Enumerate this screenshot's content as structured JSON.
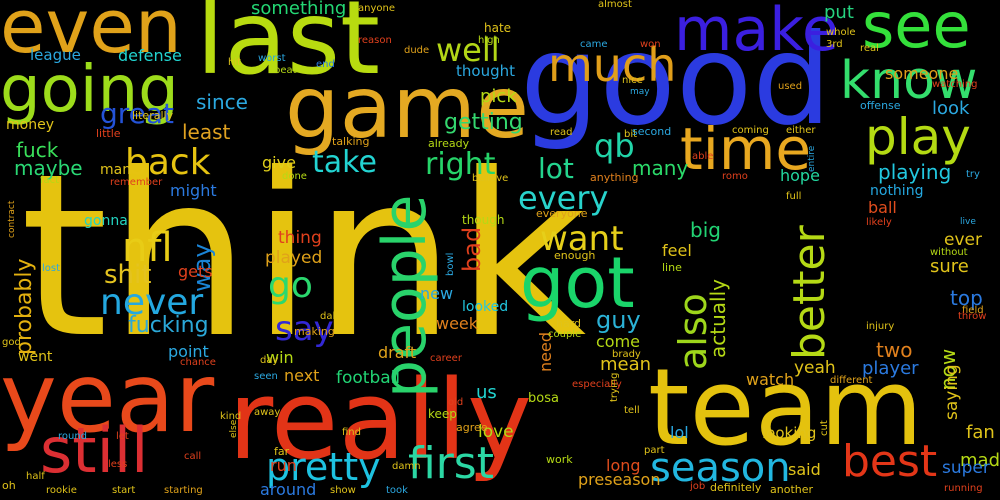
{
  "words": [
    {
      "text": "think",
      "color": "#E5C30F"
    },
    {
      "text": "good",
      "color": "#2B3BE0"
    },
    {
      "text": "last",
      "color": "#B8DB10"
    },
    {
      "text": "even",
      "color": "#E0A21A"
    },
    {
      "text": "game",
      "color": "#E4A922"
    },
    {
      "text": "year",
      "color": "#E8491B"
    },
    {
      "text": "really",
      "color": "#E23417"
    },
    {
      "text": "team",
      "color": "#E4C20E"
    },
    {
      "text": "going",
      "color": "#9DDC1B"
    },
    {
      "text": "people",
      "color": "#29D36B"
    },
    {
      "text": "got",
      "color": "#1AD56A"
    },
    {
      "text": "see",
      "color": "#34E03B"
    },
    {
      "text": "know",
      "color": "#34DE6D"
    },
    {
      "text": "play",
      "color": "#B4DA13"
    },
    {
      "text": "much",
      "color": "#E09E1A"
    },
    {
      "text": "make",
      "color": "#3B1FE0"
    },
    {
      "text": "time",
      "color": "#E8A820"
    },
    {
      "text": "still",
      "color": "#DC2F33"
    },
    {
      "text": "first",
      "color": "#2BD7A4"
    },
    {
      "text": "pretty",
      "color": "#1EC2E0"
    },
    {
      "text": "season",
      "color": "#22B7E0"
    },
    {
      "text": "best",
      "color": "#E33618"
    },
    {
      "text": "better",
      "color": "#B5D915"
    },
    {
      "text": "also",
      "color": "#9ED61B"
    },
    {
      "text": "back",
      "color": "#E6C311"
    },
    {
      "text": "nfl",
      "color": "#E8CC16"
    },
    {
      "text": "never",
      "color": "#24A8E0"
    },
    {
      "text": "say",
      "color": "#3328D6"
    },
    {
      "text": "go",
      "color": "#2BD86E"
    },
    {
      "text": "want",
      "color": "#E6CF1A"
    },
    {
      "text": "every",
      "color": "#29D3CC"
    },
    {
      "text": "well",
      "color": "#B3D717"
    },
    {
      "text": "qb",
      "color": "#21D4A8"
    },
    {
      "text": "right",
      "color": "#26D469"
    },
    {
      "text": "lot",
      "color": "#24D48E"
    },
    {
      "text": "take",
      "color": "#23D4D2"
    },
    {
      "text": "great",
      "color": "#2453D8"
    },
    {
      "text": "shit",
      "color": "#E4C31F"
    },
    {
      "text": "way",
      "color": "#1A84D6"
    },
    {
      "text": "probably",
      "color": "#E3B10F"
    },
    {
      "text": "fucking",
      "color": "#2BA8D8"
    },
    {
      "text": "guy",
      "color": "#2BB2D6"
    },
    {
      "text": "bad",
      "color": "#E0401D"
    },
    {
      "text": "getting",
      "color": "#34D86F"
    },
    {
      "text": "since",
      "color": "#2BA8E0"
    },
    {
      "text": "least",
      "color": "#E0A221"
    },
    {
      "text": "fuck",
      "color": "#3AE05A"
    },
    {
      "text": "maybe",
      "color": "#2AD874"
    },
    {
      "text": "playing",
      "color": "#22C8E0"
    },
    {
      "text": "nothing",
      "color": "#24A8E0"
    },
    {
      "text": "hope",
      "color": "#24D7A0"
    },
    {
      "text": "many",
      "color": "#2BDA6A"
    },
    {
      "text": "someone",
      "color": "#E09E1A"
    },
    {
      "text": "something",
      "color": "#24D874"
    },
    {
      "text": "put",
      "color": "#26D480"
    },
    {
      "text": "look",
      "color": "#2BA8E0"
    },
    {
      "text": "pick",
      "color": "#B5D915"
    },
    {
      "text": "thought",
      "color": "#2BA8E0"
    },
    {
      "text": "league",
      "color": "#2BA8E0"
    },
    {
      "text": "defense",
      "color": "#22D4D0"
    },
    {
      "text": "money",
      "color": "#E0C31A"
    },
    {
      "text": "give",
      "color": "#E0CF1A"
    },
    {
      "text": "might",
      "color": "#2B7AE0"
    },
    {
      "text": "gonna",
      "color": "#22D4C0"
    },
    {
      "text": "thing",
      "color": "#E0401D"
    },
    {
      "text": "played",
      "color": "#E0A21A"
    },
    {
      "text": "gets",
      "color": "#E0401D"
    },
    {
      "text": "feel",
      "color": "#E0C31A"
    },
    {
      "text": "big",
      "color": "#22D474"
    },
    {
      "text": "ball",
      "color": "#E04D1D"
    },
    {
      "text": "ever",
      "color": "#E0C31A"
    },
    {
      "text": "sure",
      "color": "#E0C31A"
    },
    {
      "text": "top",
      "color": "#2B7AE0"
    },
    {
      "text": "new",
      "color": "#2BA8E0"
    },
    {
      "text": "week",
      "color": "#E0801D"
    },
    {
      "text": "looked",
      "color": "#22C8E0"
    },
    {
      "text": "actually",
      "color": "#B5D915"
    },
    {
      "text": "two",
      "color": "#E0801D"
    },
    {
      "text": "player",
      "color": "#2B7AE0"
    },
    {
      "text": "yeah",
      "color": "#E0C31A"
    },
    {
      "text": "now",
      "color": "#B5D915"
    },
    {
      "text": "saying",
      "color": "#E0C31A"
    },
    {
      "text": "fan",
      "color": "#E0C31A"
    },
    {
      "text": "made",
      "color": "#B5D915"
    },
    {
      "text": "super",
      "color": "#2B7AE0"
    },
    {
      "text": "point",
      "color": "#2BA8E0"
    },
    {
      "text": "win",
      "color": "#B5D915"
    },
    {
      "text": "next",
      "color": "#E0A21A"
    },
    {
      "text": "football",
      "color": "#22D474"
    },
    {
      "text": "draft",
      "color": "#E0A21A"
    },
    {
      "text": "us",
      "color": "#22D4D0"
    },
    {
      "text": "need",
      "color": "#E0801D"
    },
    {
      "text": "mean",
      "color": "#E0C31A"
    },
    {
      "text": "come",
      "color": "#B5D915"
    },
    {
      "text": "watch",
      "color": "#E0A21A"
    },
    {
      "text": "love",
      "color": "#B5D915"
    },
    {
      "text": "lol",
      "color": "#2BA8E0"
    },
    {
      "text": "looking",
      "color": "#E0C31A"
    },
    {
      "text": "said",
      "color": "#E0C31A"
    },
    {
      "text": "long",
      "color": "#E04D1D"
    },
    {
      "text": "preseason",
      "color": "#E0A21A"
    },
    {
      "text": "run",
      "color": "#E0401D"
    },
    {
      "text": "around",
      "color": "#2B7AE0"
    },
    {
      "text": "went",
      "color": "#E0C31A"
    },
    {
      "text": "man",
      "color": "#E0C31A"
    },
    {
      "text": "hit",
      "color": "#E0C31A"
    },
    {
      "text": "end",
      "color": "#2B7AE0"
    },
    {
      "text": "hate",
      "color": "#E0C31A"
    },
    {
      "text": "high",
      "color": "#B5D915"
    },
    {
      "text": "almost",
      "color": "#E0C31A"
    },
    {
      "text": "anyone",
      "color": "#E0C31A"
    },
    {
      "text": "came",
      "color": "#2BA8E0"
    },
    {
      "text": "won",
      "color": "#E0401D"
    },
    {
      "text": "nice",
      "color": "#E0C31A"
    },
    {
      "text": "may",
      "color": "#2BA8E0"
    },
    {
      "text": "used",
      "color": "#E0A21A"
    },
    {
      "text": "whole",
      "color": "#E0C31A"
    },
    {
      "text": "3rd",
      "color": "#E0C31A"
    },
    {
      "text": "real",
      "color": "#E0C31A"
    },
    {
      "text": "watching",
      "color": "#E0401D"
    },
    {
      "text": "offense",
      "color": "#2BA8E0"
    },
    {
      "text": "worst",
      "color": "#2BA8E0"
    },
    {
      "text": "beat",
      "color": "#B5D915"
    },
    {
      "text": "reason",
      "color": "#E0401D"
    },
    {
      "text": "dude",
      "color": "#E0A21A"
    },
    {
      "text": "literally",
      "color": "#E0C31A"
    },
    {
      "text": "little",
      "color": "#E0401D"
    },
    {
      "text": "talking",
      "color": "#E0A21A"
    },
    {
      "text": "already",
      "color": "#B5D915"
    },
    {
      "text": "read",
      "color": "#E0C31A"
    },
    {
      "text": "bit",
      "color": "#E0C31A"
    },
    {
      "text": "second",
      "color": "#2BA8E0"
    },
    {
      "text": "coming",
      "color": "#E0C31A"
    },
    {
      "text": "either",
      "color": "#E0C31A"
    },
    {
      "text": "remember",
      "color": "#E0401D"
    },
    {
      "text": "fact",
      "color": "#B5D915"
    },
    {
      "text": "contract",
      "color": "#E0A21A"
    },
    {
      "text": "done",
      "color": "#B5D915"
    },
    {
      "text": "believe",
      "color": "#E0C31A"
    },
    {
      "text": "anything",
      "color": "#E0801D"
    },
    {
      "text": "able",
      "color": "#E0401D"
    },
    {
      "text": "romo",
      "color": "#E0401D"
    },
    {
      "text": "entire",
      "color": "#2BA8E0"
    },
    {
      "text": "full",
      "color": "#E0C31A"
    },
    {
      "text": "likely",
      "color": "#E0401D"
    },
    {
      "text": "try",
      "color": "#2BA8E0"
    },
    {
      "text": "live",
      "color": "#2BA8E0"
    },
    {
      "text": "without",
      "color": "#B5D915"
    },
    {
      "text": "field",
      "color": "#E0A21A"
    },
    {
      "text": "throw",
      "color": "#E0401D"
    },
    {
      "text": "though",
      "color": "#B5D915"
    },
    {
      "text": "everyone",
      "color": "#E0A21A"
    },
    {
      "text": "enough",
      "color": "#E0C31A"
    },
    {
      "text": "bowl",
      "color": "#2BA8E0"
    },
    {
      "text": "line",
      "color": "#B5D915"
    },
    {
      "text": "lost",
      "color": "#2BA8E0"
    },
    {
      "text": "god",
      "color": "#E0C31A"
    },
    {
      "text": "dak",
      "color": "#E0C31A"
    },
    {
      "text": "making",
      "color": "#E0A21A"
    },
    {
      "text": "hard",
      "color": "#E0C31A"
    },
    {
      "text": "couple",
      "color": "#B5D915"
    },
    {
      "text": "injury",
      "color": "#E0C31A"
    },
    {
      "text": "day",
      "color": "#E0C31A"
    },
    {
      "text": "career",
      "color": "#E0401D"
    },
    {
      "text": "brady",
      "color": "#E0C31A"
    },
    {
      "text": "chance",
      "color": "#E0401D"
    },
    {
      "text": "seen",
      "color": "#2BA8E0"
    },
    {
      "text": "especially",
      "color": "#E0401D"
    },
    {
      "text": "different",
      "color": "#E0A21A"
    },
    {
      "text": "old",
      "color": "#E0401D"
    },
    {
      "text": "bosa",
      "color": "#B5D915"
    },
    {
      "text": "kind",
      "color": "#E0C31A"
    },
    {
      "text": "away",
      "color": "#E0C31A"
    },
    {
      "text": "keep",
      "color": "#B5D915"
    },
    {
      "text": "agree",
      "color": "#E0A21A"
    },
    {
      "text": "tell",
      "color": "#E0C31A"
    },
    {
      "text": "trying",
      "color": "#E0C31A"
    },
    {
      "text": "part",
      "color": "#E0C31A"
    },
    {
      "text": "cut",
      "color": "#E0C31A"
    },
    {
      "text": "round",
      "color": "#2BA8E0"
    },
    {
      "text": "let",
      "color": "#E0401D"
    },
    {
      "text": "else",
      "color": "#E0C31A"
    },
    {
      "text": "find",
      "color": "#E0C31A"
    },
    {
      "text": "far",
      "color": "#E0C31A"
    },
    {
      "text": "damn",
      "color": "#E0C31A"
    },
    {
      "text": "work",
      "color": "#B5D915"
    },
    {
      "text": "call",
      "color": "#E0401D"
    },
    {
      "text": "less",
      "color": "#E0401D"
    },
    {
      "text": "half",
      "color": "#E0C31A"
    },
    {
      "text": "rookie",
      "color": "#E0C31A"
    },
    {
      "text": "start",
      "color": "#E0C31A"
    },
    {
      "text": "starting",
      "color": "#E0A21A"
    },
    {
      "text": "show",
      "color": "#E0C31A"
    },
    {
      "text": "took",
      "color": "#2BA8E0"
    },
    {
      "text": "job",
      "color": "#E0401D"
    },
    {
      "text": "definitely",
      "color": "#E0C31A"
    },
    {
      "text": "another",
      "color": "#E0C31A"
    },
    {
      "text": "running",
      "color": "#E0401D"
    },
    {
      "text": "oh",
      "color": "#E0C31A"
    }
  ]
}
